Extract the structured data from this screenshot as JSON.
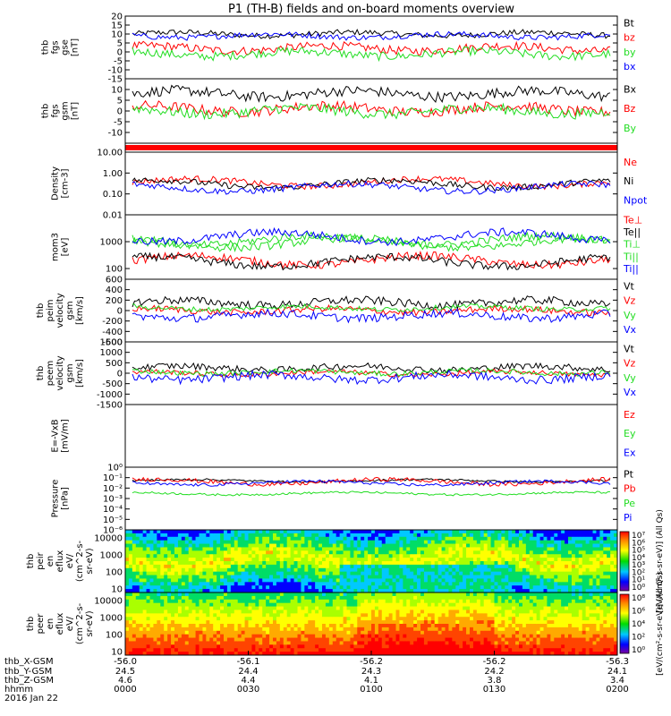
{
  "title": "P1  (TH-B) fields and on-board moments overview",
  "colors": {
    "black": "#000000",
    "red": "#ff0000",
    "green": "#22dd22",
    "blue": "#0000ff"
  },
  "chart_data": [
    {
      "type": "line",
      "id": "fgs_gse",
      "ylabel": [
        "thb",
        "fgs",
        "gse",
        "[nT]"
      ],
      "ylim": [
        -15,
        20
      ],
      "ticks": [
        "20",
        "15",
        "10",
        "5",
        "0",
        "-5",
        "-10",
        "-15"
      ],
      "tickvals": [
        20,
        15,
        10,
        5,
        0,
        -5,
        -10,
        -15
      ],
      "series": [
        {
          "name": "Bt",
          "color": "black",
          "base": 10,
          "amp": 2
        },
        {
          "name": "bz",
          "color": "red",
          "base": 2,
          "amp": 3
        },
        {
          "name": "by",
          "color": "green",
          "base": -1,
          "amp": 3
        },
        {
          "name": "bx",
          "color": "blue",
          "base": 9,
          "amp": 2
        }
      ]
    },
    {
      "type": "line",
      "id": "fgs_gsm",
      "ylabel": [
        "thb",
        "fgs",
        "gsm",
        "[nT]"
      ],
      "ylim": [
        -15,
        15
      ],
      "ticks": [
        "10",
        "5",
        "0",
        "-5",
        "-10"
      ],
      "tickvals": [
        10,
        5,
        0,
        -5,
        -10
      ],
      "series": [
        {
          "name": "Bx",
          "color": "black",
          "base": 8,
          "amp": 3
        },
        {
          "name": "Bz",
          "color": "red",
          "base": 1,
          "amp": 3
        },
        {
          "name": "By",
          "color": "green",
          "base": 0,
          "amp": 3
        }
      ]
    },
    {
      "type": "bar",
      "id": "flag",
      "ylabel": [],
      "series": []
    },
    {
      "type": "line",
      "id": "density",
      "ylabel": [
        "Density",
        "[cm-3]"
      ],
      "log": true,
      "ylim": [
        0.01,
        10
      ],
      "ticks": [
        "10.00",
        "1.00",
        "0.10",
        "0.01"
      ],
      "tickvals": [
        10,
        1,
        0.1,
        0.01
      ],
      "series": [
        {
          "name": "Ne",
          "color": "red",
          "base": 0.35,
          "amp": 0.3
        },
        {
          "name": "Ni",
          "color": "black",
          "base": 0.3,
          "amp": 0.3
        },
        {
          "name": "Npot",
          "color": "blue",
          "base": 0.2,
          "amp": 0.3
        }
      ]
    },
    {
      "type": "line",
      "id": "temp",
      "ylabel": [
        "mom3",
        "[eV]"
      ],
      "log": true,
      "ylim": [
        40,
        10000
      ],
      "ticks": [
        "1000",
        "100"
      ],
      "tickvals": [
        1000,
        100
      ],
      "series": [
        {
          "name": "Te⊥",
          "color": "red",
          "base": 200,
          "amp": 0.3
        },
        {
          "name": "Te||",
          "color": "black",
          "base": 180,
          "amp": 0.3
        },
        {
          "name": "Ti⊥",
          "color": "green",
          "base": 900,
          "amp": 0.3
        },
        {
          "name": "Ti||",
          "color": "green",
          "base": 1100,
          "amp": 0.3
        },
        {
          "name": "Ti||",
          "color": "blue",
          "base": 1500,
          "amp": 0.3
        }
      ]
    },
    {
      "type": "line",
      "id": "peim",
      "ylabel": [
        "thb",
        "peim",
        "velocity",
        "gsm",
        "[km/s]"
      ],
      "ylim": [
        -600,
        600
      ],
      "ticks": [
        "600",
        "400",
        "200",
        "0",
        "-200",
        "-400",
        "-600"
      ],
      "tickvals": [
        600,
        400,
        200,
        0,
        -200,
        -400,
        -600
      ],
      "series": [
        {
          "name": "Vt",
          "color": "black",
          "base": 150,
          "amp": 100
        },
        {
          "name": "Vz",
          "color": "red",
          "base": 0,
          "amp": 80
        },
        {
          "name": "Vy",
          "color": "green",
          "base": 50,
          "amp": 60
        },
        {
          "name": "Vx",
          "color": "blue",
          "base": -100,
          "amp": 100
        }
      ]
    },
    {
      "type": "line",
      "id": "peem",
      "ylabel": [
        "thb",
        "peem",
        "velocity",
        "gsm",
        "[km/s]"
      ],
      "ylim": [
        -1500,
        1500
      ],
      "ticks": [
        "1500",
        "1000",
        "500",
        "0",
        "-500",
        "-1000",
        "-1500"
      ],
      "tickvals": [
        1500,
        1000,
        500,
        0,
        -500,
        -1000,
        -1500
      ],
      "series": [
        {
          "name": "Vt",
          "color": "black",
          "base": 250,
          "amp": 200
        },
        {
          "name": "Vz",
          "color": "red",
          "base": 0,
          "amp": 150
        },
        {
          "name": "Vy",
          "color": "green",
          "base": 50,
          "amp": 150
        },
        {
          "name": "Vx",
          "color": "blue",
          "base": -200,
          "amp": 250
        }
      ]
    },
    {
      "type": "line",
      "id": "efield",
      "ylabel": [
        "E=-VxB",
        "[mV/m]"
      ],
      "ylim": [
        0,
        1
      ],
      "ticks": [],
      "tickvals": [],
      "series": [
        {
          "name": "Ez",
          "color": "red"
        },
        {
          "name": "Ey",
          "color": "green"
        },
        {
          "name": "Ex",
          "color": "blue"
        }
      ]
    },
    {
      "type": "line",
      "id": "pressure",
      "ylabel": [
        "Pressure",
        "[nPa]"
      ],
      "log": true,
      "ylim": [
        1e-06,
        1
      ],
      "ticks": [
        "10⁰",
        "10⁻¹",
        "10⁻²",
        "10⁻³",
        "10⁻⁴",
        "10⁻⁵",
        "10⁻⁶"
      ],
      "tickvals": [
        1,
        0.1,
        0.01,
        0.001,
        0.0001,
        1e-05,
        1e-06
      ],
      "series": [
        {
          "name": "Pt",
          "color": "black",
          "base": 0.05,
          "amp": 0.2
        },
        {
          "name": "Pb",
          "color": "red",
          "base": 0.04,
          "amp": 0.4
        },
        {
          "name": "Pe",
          "color": "green",
          "base": 0.003,
          "amp": 0.2
        },
        {
          "name": "Pi",
          "color": "blue",
          "base": 0.03,
          "amp": 0.3
        }
      ]
    },
    {
      "type": "heatmap",
      "id": "peir",
      "ylabel": [
        "thb",
        "peir",
        "en",
        "eflux",
        "eV/",
        "(cm^2-s-",
        "sr-eV)"
      ],
      "log": true,
      "ylim": [
        6,
        30000
      ],
      "ticks": [
        "10000",
        "1000",
        "100",
        "10"
      ],
      "tickvals": [
        10000,
        1000,
        100,
        10
      ]
    },
    {
      "type": "heatmap",
      "id": "peer",
      "ylabel": [
        "thb",
        "peer",
        "en",
        "eflux",
        "eV/",
        "(cm^2-s-",
        "sr-eV)"
      ],
      "log": true,
      "ylim": [
        6,
        30000
      ],
      "ticks": [
        "10000",
        "1000",
        "100",
        "10"
      ],
      "tickvals": [
        10000,
        1000,
        100,
        10
      ]
    }
  ],
  "colorbars": [
    {
      "ticks": [
        "10⁷",
        "10⁶",
        "10⁵",
        "10⁴",
        "10³",
        "10²",
        "10¹",
        "10⁰"
      ],
      "label": "[eV/(cm²-s-sr-eV)] (All Qs)"
    },
    {
      "ticks": [
        "10⁸",
        "10⁶",
        "10⁴",
        "10²",
        "10⁰"
      ],
      "label": "[eV/(cm²-s-sr-eV)] (All Qs)"
    }
  ],
  "xaxis": {
    "row_labels": [
      "thb_X-GSM",
      "thb_Y-GSM",
      "thb_Z-GSM",
      "hhmm",
      "2016 Jan 22"
    ],
    "ticks": [
      {
        "lat": "-56.0",
        "x": "24.5",
        "y": "4.6",
        "z": "0000"
      },
      {
        "lat": "-56.1",
        "x": "24.4",
        "y": "4.4",
        "z": "0030"
      },
      {
        "lat": "-56.2",
        "x": "24.3",
        "y": "4.1",
        "z": "0100"
      },
      {
        "lat": "-56.2",
        "x": "24.2",
        "y": "3.8",
        "z": "0130"
      },
      {
        "lat": "-56.3",
        "x": "24.1",
        "y": "3.4",
        "z": "0200"
      }
    ]
  }
}
